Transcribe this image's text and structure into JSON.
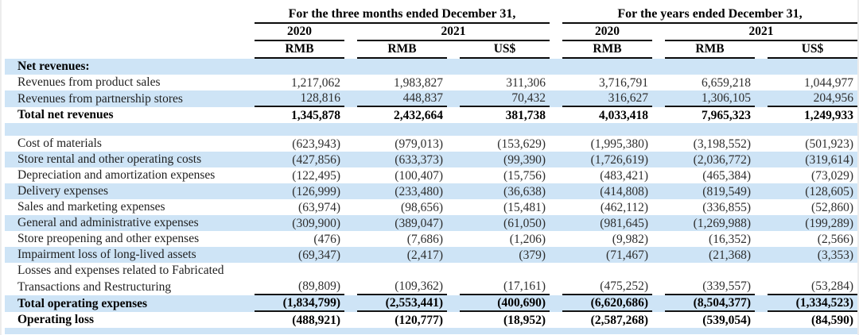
{
  "colors": {
    "stripe_blue": "#cee4f6",
    "rule_black": "#0a0a0a",
    "text_dark": "#2e2e2e"
  },
  "header": {
    "group1": "For the three months ended December 31,",
    "group2": "For the years ended December 31,",
    "years": [
      "2020",
      "2021",
      "2020",
      "2021"
    ],
    "currencies": [
      "RMB",
      "RMB",
      "US$",
      "RMB",
      "RMB",
      "US$"
    ]
  },
  "table": {
    "rows": [
      {
        "label": "Net revenues:",
        "bg": "blue",
        "style": "section",
        "values": [
          "",
          "",
          "",
          "",
          "",
          ""
        ]
      },
      {
        "label": "Revenues from product sales",
        "bg": "white",
        "values": [
          "1,217,062",
          "1,983,827",
          "311,306",
          "3,716,791",
          "6,659,218",
          "1,044,977"
        ]
      },
      {
        "label": "Revenues from partnership stores",
        "bg": "blue",
        "underline": true,
        "values": [
          "128,816",
          "448,837",
          "70,432",
          "316,627",
          "1,306,105",
          "204,956"
        ]
      },
      {
        "label": "Total net revenues",
        "bg": "white",
        "style": "bold",
        "values": [
          "1,345,878",
          "2,432,664",
          "381,738",
          "4,033,418",
          "7,965,323",
          "1,249,933"
        ]
      },
      {
        "label": "",
        "bg": "blue",
        "spacer": "mid",
        "values": [
          "",
          "",
          "",
          "",
          "",
          ""
        ]
      },
      {
        "label": "Cost of materials",
        "bg": "white",
        "values": [
          "(623,943)",
          "(979,013)",
          "(153,629)",
          "(1,995,380)",
          "(3,198,552)",
          "(501,923)"
        ]
      },
      {
        "label": "Store rental and other operating costs",
        "bg": "blue",
        "values": [
          "(427,856)",
          "(633,373)",
          "(99,390)",
          "(1,726,619)",
          "(2,036,772)",
          "(319,614)"
        ]
      },
      {
        "label": "Depreciation and amortization expenses",
        "bg": "white",
        "values": [
          "(122,495)",
          "(100,407)",
          "(15,756)",
          "(483,421)",
          "(465,384)",
          "(73,029)"
        ]
      },
      {
        "label": "Delivery expenses",
        "bg": "blue",
        "values": [
          "(126,999)",
          "(233,480)",
          "(36,638)",
          "(414,808)",
          "(819,549)",
          "(128,605)"
        ]
      },
      {
        "label": "Sales and marketing expenses",
        "bg": "white",
        "values": [
          "(63,974)",
          "(98,656)",
          "(15,481)",
          "(462,112)",
          "(336,855)",
          "(52,860)"
        ]
      },
      {
        "label": "General and administrative expenses",
        "bg": "blue",
        "values": [
          "(309,900)",
          "(389,047)",
          "(61,050)",
          "(981,645)",
          "(1,269,988)",
          "(199,289)"
        ]
      },
      {
        "label": "Store preopening and other expenses",
        "bg": "white",
        "values": [
          "(476)",
          "(7,686)",
          "(1,206)",
          "(9,982)",
          "(16,352)",
          "(2,566)"
        ]
      },
      {
        "label": "Impairment loss of long-lived assets",
        "bg": "blue",
        "values": [
          "(69,347)",
          "(2,417)",
          "(379)",
          "(71,467)",
          "(21,368)",
          "(3,353)"
        ]
      },
      {
        "label": "Losses and expenses related to Fabricated",
        "bg": "white",
        "values": [
          "",
          "",
          "",
          "",
          "",
          ""
        ]
      },
      {
        "label": "Transactions and Restructuring",
        "bg": "white",
        "underline": true,
        "values": [
          "(89,809)",
          "(109,362)",
          "(17,161)",
          "(475,252)",
          "(339,557)",
          "(53,284)"
        ]
      },
      {
        "label": "Total operating expenses",
        "bg": "blue",
        "style": "bold",
        "underline": true,
        "values": [
          "(1,834,799)",
          "(2,553,441)",
          "(400,690)",
          "(6,620,686)",
          "(8,504,377)",
          "(1,334,523)"
        ]
      },
      {
        "label": "Operating loss",
        "bg": "white",
        "style": "bold",
        "values": [
          "(488,921)",
          "(120,777)",
          "(18,952)",
          "(2,587,268)",
          "(539,054)",
          "(84,590)"
        ]
      },
      {
        "label": "",
        "bg": "blue",
        "spacer": "bottom",
        "values": [
          "",
          "",
          "",
          "",
          "",
          ""
        ]
      }
    ]
  }
}
